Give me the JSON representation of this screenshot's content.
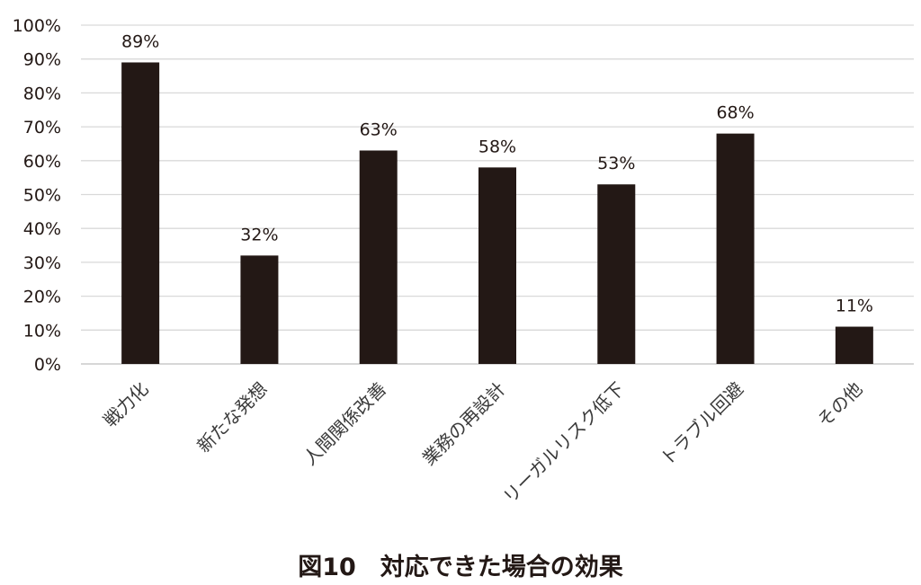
{
  "colors": {
    "bar": "#231815",
    "grid": "#d9d9d9",
    "text": "#231815"
  },
  "caption": "図10　対応できた場合の効果",
  "chart_data": {
    "type": "bar",
    "categories": [
      "戦力化",
      "新たな発想",
      "人間関係改善",
      "業務の再設計",
      "リーガルリスク低下",
      "トラブル回避",
      "その他"
    ],
    "values": [
      89,
      32,
      63,
      58,
      53,
      68,
      11
    ],
    "value_labels": [
      "89%",
      "32%",
      "63%",
      "58%",
      "53%",
      "68%",
      "11%"
    ],
    "y_ticks": [
      "0%",
      "10%",
      "20%",
      "30%",
      "40%",
      "50%",
      "60%",
      "70%",
      "80%",
      "90%",
      "100%"
    ],
    "ylim": [
      0,
      100
    ],
    "grid": true,
    "legend": "none"
  }
}
